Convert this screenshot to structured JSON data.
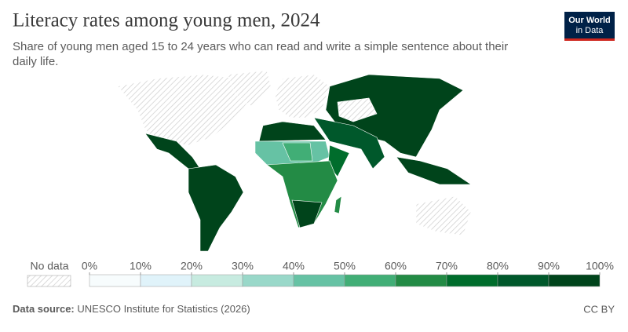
{
  "header": {
    "title": "Literacy rates among young men, 2024",
    "subtitle": [
      "Share of young men aged 15 to 24 years who can read and write a simple sentence about their",
      "daily life."
    ],
    "logo": [
      "Our World",
      "in Data"
    ]
  },
  "legend": {
    "no_data": "No data",
    "ticks": [
      {
        "value": 0,
        "label": "0%"
      },
      {
        "value": 10,
        "label": "10%"
      },
      {
        "value": 20,
        "label": "20%"
      },
      {
        "value": 30,
        "label": "30%"
      },
      {
        "value": 40,
        "label": "40%"
      },
      {
        "value": 50,
        "label": "50%"
      },
      {
        "value": 60,
        "label": "60%"
      },
      {
        "value": 70,
        "label": "70%"
      },
      {
        "value": 80,
        "label": "80%"
      },
      {
        "value": 90,
        "label": "90%"
      },
      {
        "value": 100,
        "label": "100%"
      }
    ],
    "colors": [
      "#f7fcfd",
      "#e0f3fa",
      "#c7ebe0",
      "#99d8c9",
      "#66c2a4",
      "#41ae76",
      "#238b45",
      "#006d2c",
      "#00582b",
      "#00441b"
    ]
  },
  "footer": {
    "source_label": "Data source:",
    "source": "UNESCO Institute for Statistics (2026)",
    "license": "CC BY"
  }
}
